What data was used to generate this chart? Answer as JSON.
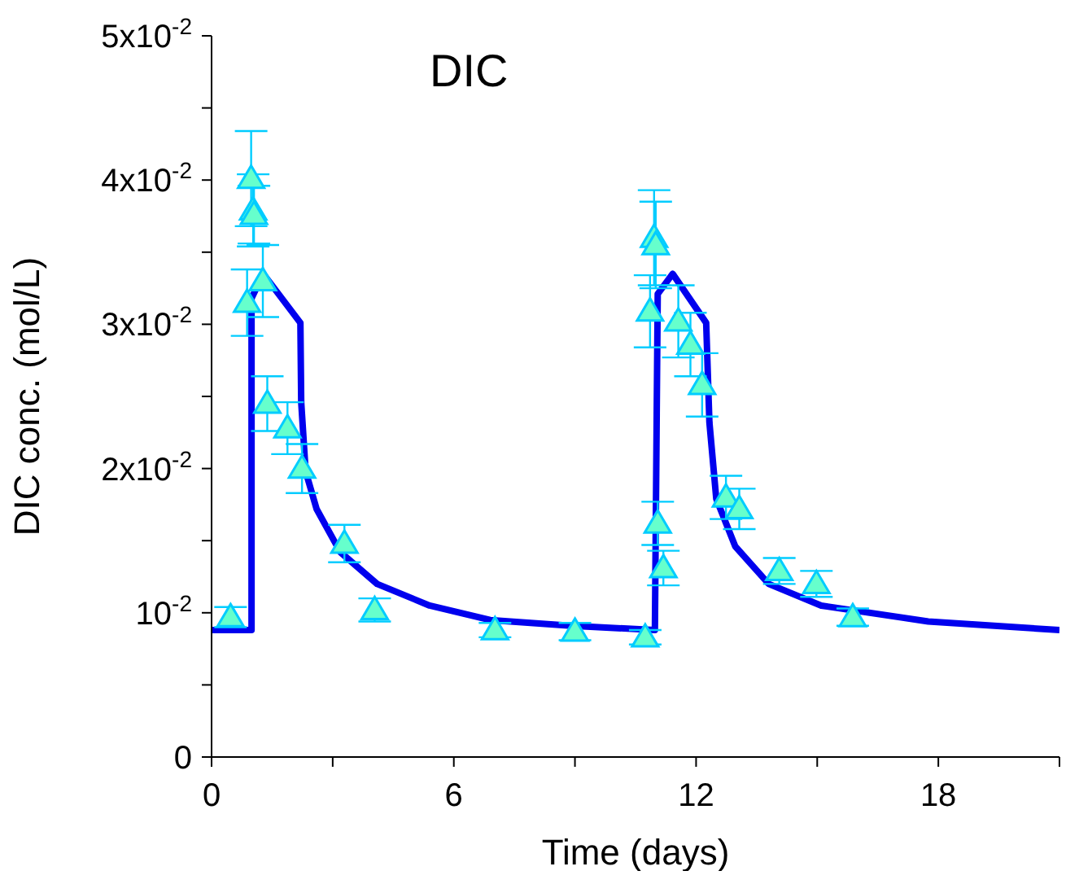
{
  "chart_data": {
    "type": "scatter",
    "title": "DIC",
    "xlabel": "Time (days)",
    "ylabel": "DIC conc. (mol/L)",
    "xlim": [
      0,
      21
    ],
    "xticks": [
      0,
      {
        "value": 3,
        "label": null
      },
      6,
      {
        "value": 9,
        "label": null
      },
      12,
      {
        "value": 15,
        "label": null
      },
      18,
      {
        "value": 21,
        "label": null
      }
    ],
    "ylim": [
      0,
      0.05
    ],
    "yticks": [
      {
        "value": 0,
        "label": "0"
      },
      {
        "value": 0.005,
        "label": null
      },
      {
        "value": 0.01,
        "label": "10$^{-2}$"
      },
      {
        "value": 0.015,
        "label": null
      },
      {
        "value": 0.02,
        "label": "2x10$^{-2}$"
      },
      {
        "value": 0.025,
        "label": null
      },
      {
        "value": 0.03,
        "label": "3x10$^{-2}$"
      },
      {
        "value": 0.035,
        "label": null
      },
      {
        "value": 0.04,
        "label": "4x10$^{-2}$"
      },
      {
        "value": 0.045,
        "label": null
      },
      {
        "value": 0.05,
        "label": "5x10$^{-2}$"
      }
    ],
    "grid": false,
    "legend": false,
    "marker": "triangle",
    "series": [
      {
        "color": "#66ffcc",
        "x": [
          0.47,
          0.88,
          0.98,
          1.03,
          1.05,
          1.27,
          1.38,
          1.88,
          2.24,
          3.29,
          4.04,
          7.02,
          9.0,
          10.74,
          10.86,
          10.96,
          11.0,
          11.05,
          11.19,
          11.56,
          11.86,
          12.15,
          12.74,
          13.07,
          14.06,
          14.98,
          15.88
        ],
        "values": [
          0.0097,
          0.0315,
          0.0401,
          0.0379,
          0.0376,
          0.033,
          0.0245,
          0.0228,
          0.02,
          0.0148,
          0.0102,
          0.0088,
          0.0087,
          0.0083,
          0.0309,
          0.036,
          0.0355,
          0.0162,
          0.0131,
          0.0302,
          0.0286,
          0.0258,
          0.018,
          0.0172,
          0.0129,
          0.012,
          0.0097
        ],
        "errors": [
          0.0007,
          0.0023,
          0.0033,
          0.0025,
          0.002,
          0.0025,
          0.0019,
          0.0018,
          0.0017,
          0.0013,
          0.0008,
          0.0005,
          0.0006,
          0.0005,
          0.0025,
          0.0033,
          0.003,
          0.0015,
          0.0012,
          0.0025,
          0.0022,
          0.0022,
          0.0015,
          0.0014,
          0.0009,
          0.0009,
          0.0006
        ]
      },
      {
        "type": "line",
        "color": "#0000ee",
        "line_style": "solid",
        "marker": "none",
        "x": [
          0,
          0.99,
          0.99,
          1.28,
          2.2,
          2.22,
          2.33,
          2.6,
          3.19,
          4.1,
          5.4,
          6.9,
          8.9,
          10.98,
          11.05,
          11.42,
          12.25,
          12.33,
          12.5,
          12.97,
          13.8,
          15.1,
          17.75,
          21
        ],
        "values": [
          0.0088,
          0.0088,
          0.0318,
          0.0335,
          0.0301,
          0.0246,
          0.0198,
          0.0172,
          0.0142,
          0.012,
          0.0105,
          0.0095,
          0.0091,
          0.0088,
          0.0321,
          0.0335,
          0.0301,
          0.0232,
          0.0179,
          0.0146,
          0.012,
          0.0105,
          0.0094,
          0.0088
        ]
      }
    ]
  }
}
